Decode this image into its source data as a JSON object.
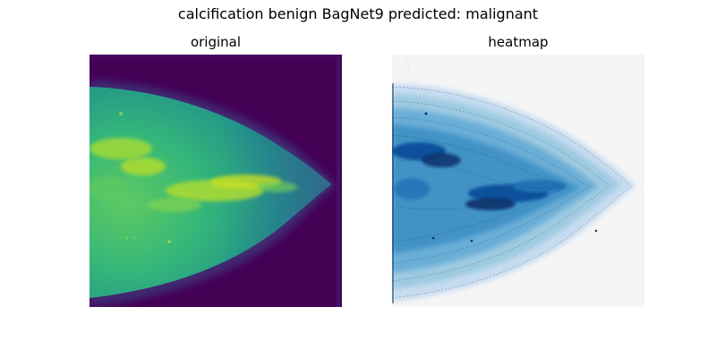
{
  "figure": {
    "suptitle": "calcification benign BagNet9 predicted: malignant"
  },
  "panels": [
    {
      "title": "original"
    },
    {
      "title": "heatmap"
    }
  ],
  "colors": {
    "original_background": "#440154",
    "original_tissue": "#2a9a8a",
    "original_bright": "#b5de2b",
    "heatmap_background": "#f5f5f5",
    "heatmap_light": "#9ecae1",
    "heatmap_mid": "#4292c6",
    "heatmap_dark": "#08306b"
  }
}
